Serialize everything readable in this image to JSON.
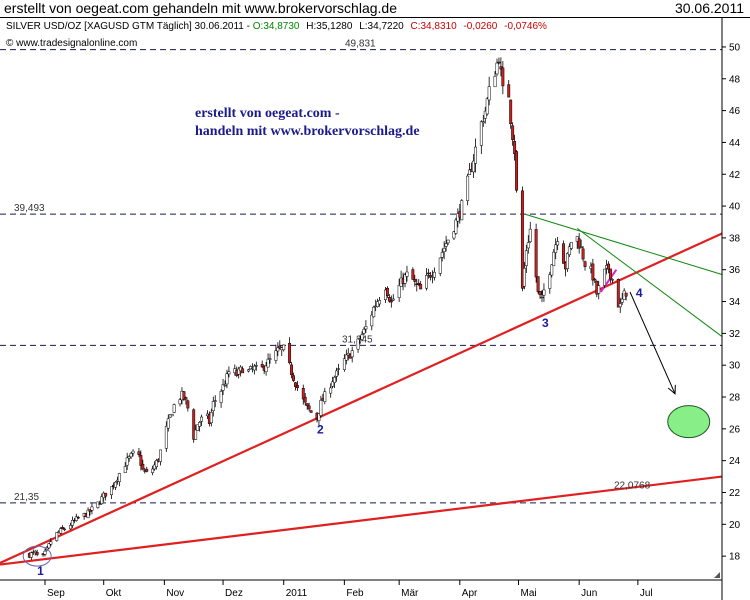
{
  "header": {
    "title": "erstellt von oegeat.com gehandeln mit www.brokervorschlag.de",
    "date": "30.06.2011"
  },
  "info_line": {
    "instrument": "SILVER USD/OZ [XAGUSD GTM  Täglich] 30.06.2011 - ",
    "open": "O:34,8730",
    "high": "H:35,1280",
    "low": "L:34,7220",
    "close": "C:34,8310",
    "change": "-0,0260",
    "change_pct": "-0,0746%"
  },
  "copyright": "© www.tradesignalonline.com",
  "annotation_lines": [
    "erstellt von oegeat.com -",
    "handeln mit www.brokervorschlag.de"
  ],
  "colors": {
    "bull": "#ffffff",
    "bear": "#cc2020",
    "candle_line": "#000000",
    "trend": "#e02020",
    "green_trend": "#118811",
    "ellipse": "#88ee88",
    "wave_label": "#1a1aa0",
    "magenta": "#dd22cc",
    "info_green": "#008800",
    "info_red": "#cc0000",
    "annotation": "#1a1a8c"
  },
  "chart_data": {
    "type": "candlestick",
    "title": "SILVER USD/OZ [XAGUSD GTM  Täglich] 30.06.2011",
    "y_axis": {
      "position": "right",
      "ylim": [
        16.5,
        50.5
      ],
      "ticks": [
        18,
        20,
        22,
        24,
        26,
        28,
        30,
        32,
        34,
        36,
        38,
        40,
        42,
        44,
        46,
        48,
        50
      ]
    },
    "x_axis": {
      "ticks": [
        {
          "label": "Sep",
          "day": 8
        },
        {
          "label": "Okt",
          "day": 38
        },
        {
          "label": "Nov",
          "day": 69
        },
        {
          "label": "Dez",
          "day": 99
        },
        {
          "label": "2011",
          "day": 130
        },
        {
          "label": "Feb",
          "day": 161
        },
        {
          "label": "Mär",
          "day": 189
        },
        {
          "label": "Apr",
          "day": 220
        },
        {
          "label": "Mai",
          "day": 250
        },
        {
          "label": "Jun",
          "day": 281
        },
        {
          "label": "Jul",
          "day": 311
        }
      ],
      "xlim": [
        -15,
        354
      ]
    },
    "anchors": [
      [
        0,
        18.1
      ],
      [
        3,
        18.2
      ],
      [
        6,
        17.7
      ],
      [
        9,
        18.4
      ],
      [
        12,
        19.2
      ],
      [
        15,
        19.5
      ],
      [
        20,
        19.9
      ],
      [
        25,
        20.4
      ],
      [
        30,
        20.7
      ],
      [
        35,
        21.3
      ],
      [
        38,
        21.8
      ],
      [
        42,
        22.3
      ],
      [
        46,
        23.2
      ],
      [
        50,
        24.0
      ],
      [
        55,
        24.7
      ],
      [
        58,
        23.4
      ],
      [
        61,
        23.1
      ],
      [
        64,
        23.7
      ],
      [
        66,
        24.1
      ],
      [
        69,
        25.6
      ],
      [
        72,
        26.8
      ],
      [
        75,
        27.8
      ],
      [
        78,
        28.1
      ],
      [
        80,
        27.7
      ],
      [
        83,
        26.5
      ],
      [
        84,
        25.5
      ],
      [
        86,
        26.3
      ],
      [
        88,
        26.6
      ],
      [
        90,
        27.0
      ],
      [
        92,
        26.4
      ],
      [
        94,
        27.6
      ],
      [
        97,
        28.2
      ],
      [
        100,
        28.9
      ],
      [
        103,
        29.9
      ],
      [
        106,
        29.4
      ],
      [
        109,
        29.8
      ],
      [
        112,
        29.6
      ],
      [
        115,
        29.8
      ],
      [
        118,
        29.6
      ],
      [
        121,
        30.1
      ],
      [
        124,
        30.4
      ],
      [
        127,
        30.9
      ],
      [
        130,
        31.0
      ],
      [
        133,
        29.9
      ],
      [
        136,
        28.9
      ],
      [
        139,
        28.0
      ],
      [
        142,
        27.3
      ],
      [
        145,
        26.9
      ],
      [
        147,
        26.7
      ],
      [
        149,
        27.6
      ],
      [
        152,
        28.3
      ],
      [
        155,
        29.1
      ],
      [
        158,
        29.6
      ],
      [
        161,
        30.3
      ],
      [
        164,
        30.7
      ],
      [
        167,
        31.2
      ],
      [
        170,
        31.9
      ],
      [
        173,
        32.6
      ],
      [
        176,
        33.6
      ],
      [
        179,
        34.3
      ],
      [
        182,
        35.0
      ],
      [
        185,
        33.9
      ],
      [
        188,
        34.7
      ],
      [
        191,
        35.4
      ],
      [
        194,
        35.8
      ],
      [
        197,
        35.1
      ],
      [
        200,
        34.7
      ],
      [
        203,
        35.4
      ],
      [
        206,
        35.9
      ],
      [
        209,
        36.6
      ],
      [
        212,
        37.4
      ],
      [
        215,
        38.2
      ],
      [
        218,
        39.0
      ],
      [
        221,
        40.0
      ],
      [
        224,
        41.5
      ],
      [
        227,
        43.0
      ],
      [
        230,
        44.8
      ],
      [
        233,
        46.0
      ],
      [
        236,
        47.8
      ],
      [
        238,
        48.5
      ],
      [
        240,
        49.4
      ],
      [
        242,
        47.2
      ],
      [
        244,
        48.6
      ],
      [
        246,
        45.5
      ],
      [
        248,
        43.5
      ],
      [
        250,
        38.2
      ],
      [
        252,
        34.8
      ],
      [
        254,
        37.3
      ],
      [
        256,
        38.5
      ],
      [
        258,
        36.6
      ],
      [
        260,
        34.5
      ],
      [
        262,
        34.0
      ],
      [
        264,
        35.4
      ],
      [
        266,
        36.0
      ],
      [
        268,
        37.2
      ],
      [
        270,
        38.1
      ],
      [
        272,
        37.1
      ],
      [
        274,
        36.2
      ],
      [
        276,
        37.3
      ],
      [
        278,
        38.3
      ],
      [
        280,
        38.0
      ],
      [
        282,
        37.3
      ],
      [
        284,
        36.4
      ],
      [
        286,
        36.2
      ],
      [
        288,
        35.6
      ],
      [
        290,
        34.5
      ],
      [
        292,
        35.1
      ],
      [
        294,
        35.8
      ],
      [
        296,
        36.1
      ],
      [
        298,
        35.4
      ],
      [
        300,
        34.0
      ],
      [
        302,
        33.7
      ],
      [
        304,
        34.4
      ],
      [
        306,
        34.83
      ]
    ],
    "last_close": 34.831,
    "horizontal_levels": [
      {
        "value": 49.831,
        "label": "49,831"
      },
      {
        "value": 39.493,
        "label": "39,493"
      },
      {
        "value": 31.245,
        "label": "31,245"
      },
      {
        "value": 21.35,
        "label": "21,35"
      }
    ],
    "trendlines": [
      {
        "name": "red-support-steep",
        "color": "red",
        "from": [
          -15,
          17.57
        ],
        "to": [
          354,
          38.28
        ]
      },
      {
        "name": "red-support-flat",
        "color": "red",
        "from": [
          -15,
          17.47
        ],
        "to": [
          354,
          23.0
        ],
        "label": "22,0768",
        "label_value": 22.0768
      },
      {
        "name": "green-upper",
        "color": "green",
        "from": [
          253,
          39.5
        ],
        "to": [
          354,
          35.7
        ]
      },
      {
        "name": "green-lower",
        "color": "green",
        "from": [
          280,
          38.6
        ],
        "to": [
          354,
          31.8
        ]
      },
      {
        "name": "magenta",
        "color": "magenta",
        "from": [
          292,
          34.6
        ],
        "to": [
          300,
          36.0
        ]
      }
    ],
    "wave_labels": [
      {
        "label": "1",
        "x": 4,
        "y": 16.8
      },
      {
        "label": "2",
        "x": 147,
        "y": 25.7
      },
      {
        "label": "3",
        "x": 262,
        "y": 32.4
      },
      {
        "label": "4",
        "x": 310,
        "y": 34.3
      }
    ],
    "projection_arrow": {
      "from": [
        307,
        34.6
      ],
      "to": [
        330,
        28.2
      ]
    },
    "target_ellipse": {
      "x": 337,
      "y": 26.45
    },
    "wave1_circle": {
      "x": 4,
      "y": 18.0
    }
  }
}
